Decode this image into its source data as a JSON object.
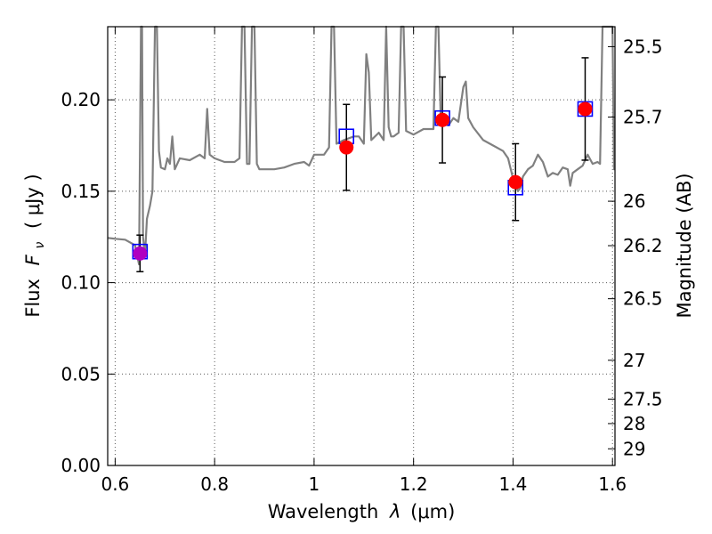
{
  "chart_data": {
    "type": "scatter",
    "title": "",
    "xlabel_text": "Wavelength",
    "xlabel_symbol": "λ",
    "xlabel_unit": "(μm)",
    "ylabel_text": "Flux",
    "ylabel_symbol": "F",
    "ylabel_sub": "ν",
    "ylabel_unit": "( μJy )",
    "ylabel_right": "Magnitude (AB)",
    "xlim": [
      0.585,
      1.605
    ],
    "ylim": [
      0.0,
      0.24
    ],
    "x_ticks": [
      0.6,
      0.8,
      1.0,
      1.2,
      1.4,
      1.6
    ],
    "x_tick_labels": [
      "0.6",
      "0.8",
      "1",
      "1.2",
      "1.4",
      "1.6"
    ],
    "y_ticks": [
      0.0,
      0.05,
      0.1,
      0.15,
      0.2
    ],
    "y_tick_labels": [
      "0.00",
      "0.05",
      "0.10",
      "0.15",
      "0.20"
    ],
    "right_ticks": [
      25.5,
      25.7,
      26,
      26.2,
      26.5,
      27,
      27.5,
      28,
      29
    ],
    "right_tick_labels": [
      "25.5",
      "25.7",
      "26",
      "26.2",
      "26.5",
      "27",
      "27.5",
      "28",
      "29"
    ],
    "grid": true,
    "colors": {
      "model_spectrum": "#808080",
      "observed_points": "#ff0000",
      "model_photometry": "#0000ff",
      "error_bars": "#000000",
      "first_point": "#b000c0"
    },
    "observed": [
      {
        "x": 0.65,
        "y": 0.116,
        "err": 0.01
      },
      {
        "x": 1.065,
        "y": 0.174,
        "err": 0.0235
      },
      {
        "x": 1.258,
        "y": 0.189,
        "err": 0.0235
      },
      {
        "x": 1.405,
        "y": 0.155,
        "err": 0.021
      },
      {
        "x": 1.545,
        "y": 0.195,
        "err": 0.028
      }
    ],
    "model_photometry": [
      {
        "x": 0.65,
        "y": 0.117
      },
      {
        "x": 1.065,
        "y": 0.18
      },
      {
        "x": 1.258,
        "y": 0.19
      },
      {
        "x": 1.405,
        "y": 0.152
      },
      {
        "x": 1.545,
        "y": 0.195
      }
    ],
    "spectrum": [
      [
        0.585,
        0.1245
      ],
      [
        0.6,
        0.124
      ],
      [
        0.62,
        0.1235
      ],
      [
        0.64,
        0.1205
      ],
      [
        0.648,
        0.11
      ],
      [
        0.652,
        0.24
      ],
      [
        0.654,
        0.24
      ],
      [
        0.656,
        0.125
      ],
      [
        0.66,
        0.115
      ],
      [
        0.664,
        0.135
      ],
      [
        0.67,
        0.142
      ],
      [
        0.675,
        0.15
      ],
      [
        0.68,
        0.24
      ],
      [
        0.684,
        0.24
      ],
      [
        0.688,
        0.172
      ],
      [
        0.692,
        0.163
      ],
      [
        0.7,
        0.162
      ],
      [
        0.705,
        0.168
      ],
      [
        0.71,
        0.165
      ],
      [
        0.715,
        0.18
      ],
      [
        0.72,
        0.162
      ],
      [
        0.73,
        0.168
      ],
      [
        0.75,
        0.167
      ],
      [
        0.77,
        0.17
      ],
      [
        0.78,
        0.168
      ],
      [
        0.785,
        0.195
      ],
      [
        0.79,
        0.17
      ],
      [
        0.8,
        0.168
      ],
      [
        0.82,
        0.166
      ],
      [
        0.84,
        0.166
      ],
      [
        0.85,
        0.168
      ],
      [
        0.855,
        0.24
      ],
      [
        0.86,
        0.24
      ],
      [
        0.865,
        0.165
      ],
      [
        0.87,
        0.165
      ],
      [
        0.875,
        0.24
      ],
      [
        0.88,
        0.24
      ],
      [
        0.885,
        0.165
      ],
      [
        0.89,
        0.162
      ],
      [
        0.92,
        0.162
      ],
      [
        0.94,
        0.163
      ],
      [
        0.96,
        0.165
      ],
      [
        0.98,
        0.166
      ],
      [
        0.99,
        0.164
      ],
      [
        1.0,
        0.17
      ],
      [
        1.02,
        0.17
      ],
      [
        1.03,
        0.174
      ],
      [
        1.035,
        0.24
      ],
      [
        1.04,
        0.24
      ],
      [
        1.045,
        0.176
      ],
      [
        1.06,
        0.178
      ],
      [
        1.08,
        0.18
      ],
      [
        1.09,
        0.18
      ],
      [
        1.1,
        0.176
      ],
      [
        1.105,
        0.225
      ],
      [
        1.11,
        0.215
      ],
      [
        1.115,
        0.178
      ],
      [
        1.13,
        0.182
      ],
      [
        1.14,
        0.178
      ],
      [
        1.145,
        0.24
      ],
      [
        1.15,
        0.185
      ],
      [
        1.155,
        0.18
      ],
      [
        1.16,
        0.18
      ],
      [
        1.17,
        0.182
      ],
      [
        1.175,
        0.24
      ],
      [
        1.18,
        0.24
      ],
      [
        1.185,
        0.183
      ],
      [
        1.2,
        0.181
      ],
      [
        1.22,
        0.184
      ],
      [
        1.24,
        0.184
      ],
      [
        1.245,
        0.24
      ],
      [
        1.25,
        0.24
      ],
      [
        1.255,
        0.186
      ],
      [
        1.26,
        0.188
      ],
      [
        1.27,
        0.186
      ],
      [
        1.28,
        0.19
      ],
      [
        1.29,
        0.188
      ],
      [
        1.3,
        0.207
      ],
      [
        1.305,
        0.21
      ],
      [
        1.31,
        0.19
      ],
      [
        1.32,
        0.185
      ],
      [
        1.34,
        0.178
      ],
      [
        1.36,
        0.175
      ],
      [
        1.38,
        0.172
      ],
      [
        1.39,
        0.168
      ],
      [
        1.4,
        0.157
      ],
      [
        1.41,
        0.15
      ],
      [
        1.415,
        0.152
      ],
      [
        1.42,
        0.158
      ],
      [
        1.43,
        0.162
      ],
      [
        1.44,
        0.164
      ],
      [
        1.45,
        0.17
      ],
      [
        1.46,
        0.166
      ],
      [
        1.47,
        0.158
      ],
      [
        1.48,
        0.16
      ],
      [
        1.49,
        0.159
      ],
      [
        1.5,
        0.163
      ],
      [
        1.51,
        0.162
      ],
      [
        1.515,
        0.153
      ],
      [
        1.52,
        0.16
      ],
      [
        1.53,
        0.162
      ],
      [
        1.54,
        0.164
      ],
      [
        1.55,
        0.17
      ],
      [
        1.56,
        0.165
      ],
      [
        1.57,
        0.166
      ],
      [
        1.575,
        0.165
      ],
      [
        1.58,
        0.24
      ],
      [
        1.59,
        0.24
      ],
      [
        1.6,
        0.24
      ],
      [
        1.603,
        0.162
      ],
      [
        1.605,
        0.162
      ]
    ]
  }
}
